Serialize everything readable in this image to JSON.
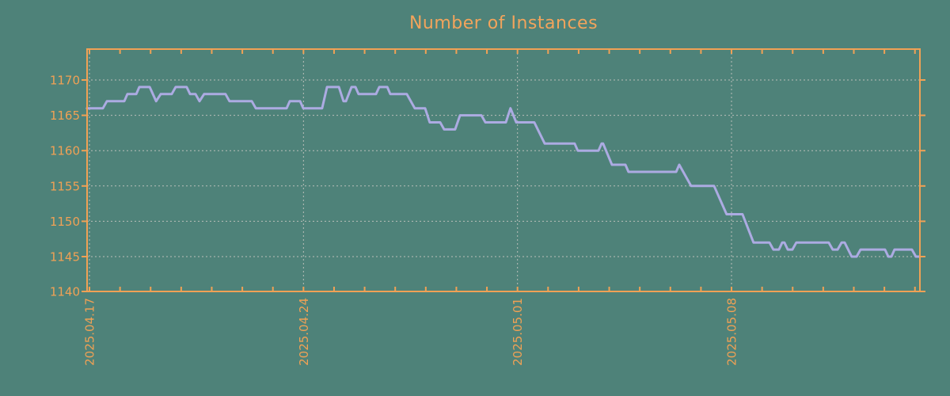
{
  "title": "Number of Instances",
  "colors": {
    "background": "#4e8279",
    "axis": "#f0a155",
    "title": "#f2a45c",
    "grid": "#b9beb9",
    "line": "#acabe2"
  },
  "chart_data": {
    "type": "line",
    "title": "Number of Instances",
    "legend": "none",
    "grid_style": "dotted",
    "x_tick_labels": [
      "2025.04.17",
      "2025.04.24",
      "2025.05.01",
      "2025.05.08"
    ],
    "x_tick_days": [
      0,
      7,
      14,
      21
    ],
    "x_minor_tick_every_days": 1,
    "x_total_minor_ticks_days": 27,
    "xlim_days": [
      -0.08,
      27.16
    ],
    "y_ticks": [
      1140,
      1145,
      1150,
      1155,
      1160,
      1165,
      1170
    ],
    "y_grid_values": [
      1145,
      1150,
      1155,
      1160,
      1165,
      1170
    ],
    "ylim": [
      1140,
      1174.4
    ],
    "series": [
      {
        "name": "Number of Instances",
        "color": "#acabe2",
        "points_format": "[days_since_2025.04.17, value]",
        "points": [
          [
            -0.08,
            1166
          ],
          [
            0.44,
            1166
          ],
          [
            0.57,
            1167
          ],
          [
            1.14,
            1167
          ],
          [
            1.24,
            1168
          ],
          [
            1.53,
            1168
          ],
          [
            1.63,
            1169
          ],
          [
            1.97,
            1169
          ],
          [
            2.18,
            1167
          ],
          [
            2.33,
            1168
          ],
          [
            2.69,
            1168
          ],
          [
            2.82,
            1169
          ],
          [
            3.18,
            1169
          ],
          [
            3.29,
            1168
          ],
          [
            3.47,
            1168
          ],
          [
            3.6,
            1167
          ],
          [
            3.75,
            1168
          ],
          [
            4.45,
            1168
          ],
          [
            4.58,
            1167
          ],
          [
            5.31,
            1167
          ],
          [
            5.44,
            1166
          ],
          [
            6.45,
            1166
          ],
          [
            6.55,
            1167
          ],
          [
            6.89,
            1167
          ],
          [
            6.99,
            1166
          ],
          [
            7.61,
            1166
          ],
          [
            7.77,
            1169
          ],
          [
            8.16,
            1169
          ],
          [
            8.31,
            1167
          ],
          [
            8.39,
            1167
          ],
          [
            8.57,
            1169
          ],
          [
            8.7,
            1169
          ],
          [
            8.8,
            1168
          ],
          [
            9.37,
            1168
          ],
          [
            9.48,
            1169
          ],
          [
            9.74,
            1169
          ],
          [
            9.84,
            1168
          ],
          [
            10.38,
            1168
          ],
          [
            10.64,
            1166
          ],
          [
            10.98,
            1166
          ],
          [
            11.13,
            1164
          ],
          [
            11.47,
            1164
          ],
          [
            11.6,
            1163
          ],
          [
            11.96,
            1163
          ],
          [
            12.12,
            1165
          ],
          [
            12.82,
            1165
          ],
          [
            12.95,
            1164
          ],
          [
            13.62,
            1164
          ],
          [
            13.77,
            1166
          ],
          [
            13.96,
            1164
          ],
          [
            14.55,
            1164
          ],
          [
            14.89,
            1161
          ],
          [
            15.87,
            1161
          ],
          [
            15.97,
            1160
          ],
          [
            16.65,
            1160
          ],
          [
            16.75,
            1161
          ],
          [
            16.8,
            1161
          ],
          [
            17.09,
            1158
          ],
          [
            17.53,
            1158
          ],
          [
            17.63,
            1157
          ],
          [
            19.19,
            1157
          ],
          [
            19.29,
            1158
          ],
          [
            19.68,
            1155
          ],
          [
            20.43,
            1155
          ],
          [
            20.84,
            1151
          ],
          [
            21.36,
            1151
          ],
          [
            21.72,
            1147
          ],
          [
            22.24,
            1147
          ],
          [
            22.37,
            1146
          ],
          [
            22.55,
            1146
          ],
          [
            22.66,
            1147
          ],
          [
            22.73,
            1147
          ],
          [
            22.84,
            1146
          ],
          [
            22.99,
            1146
          ],
          [
            23.12,
            1147
          ],
          [
            24.18,
            1147
          ],
          [
            24.31,
            1146
          ],
          [
            24.47,
            1146
          ],
          [
            24.6,
            1147
          ],
          [
            24.7,
            1147
          ],
          [
            24.93,
            1145
          ],
          [
            25.09,
            1145
          ],
          [
            25.22,
            1146
          ],
          [
            26.02,
            1146
          ],
          [
            26.13,
            1145
          ],
          [
            26.23,
            1145
          ],
          [
            26.33,
            1146
          ],
          [
            26.9,
            1146
          ],
          [
            27.03,
            1145
          ],
          [
            27.16,
            1145
          ]
        ]
      }
    ]
  }
}
